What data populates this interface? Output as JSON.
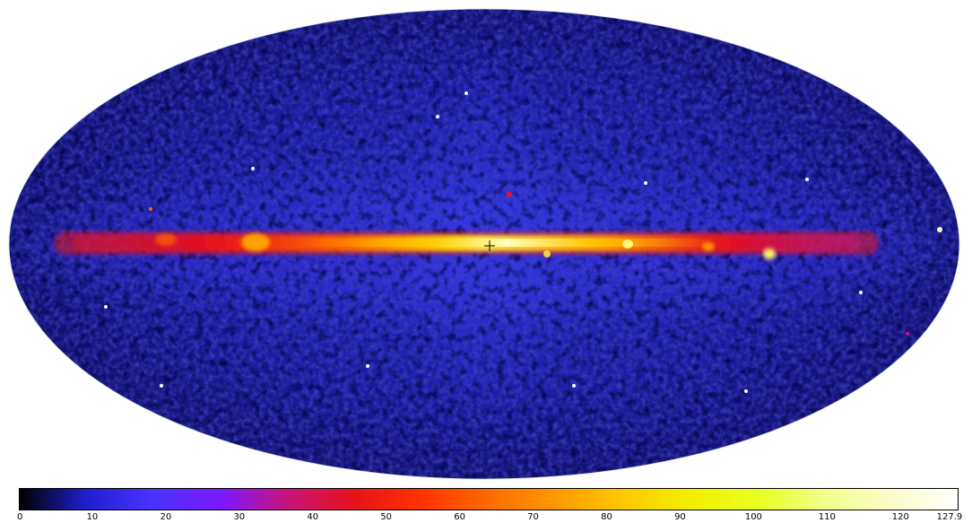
{
  "colormap": {
    "stops": [
      "#000000",
      "#1f1fcf",
      "#4b33ff",
      "#7a19ff",
      "#c8147a",
      "#e8121a",
      "#ff3300",
      "#ff6a00",
      "#ff9900",
      "#ffc800",
      "#f2ef00",
      "#e8ff20",
      "#f2ff8a",
      "#fbfcc8",
      "#ffffff"
    ]
  },
  "colorbar": {
    "min": 0,
    "max": 127.9,
    "ticks": [
      "0",
      "10",
      "20",
      "30",
      "40",
      "50",
      "60",
      "70",
      "80",
      "90",
      "100",
      "110",
      "120",
      "127.9"
    ]
  },
  "map": {
    "projection": "mollweide",
    "background_color": "#0b0a3a",
    "galactic_plane_color": "#ffea3a",
    "center_marker": "plus"
  }
}
